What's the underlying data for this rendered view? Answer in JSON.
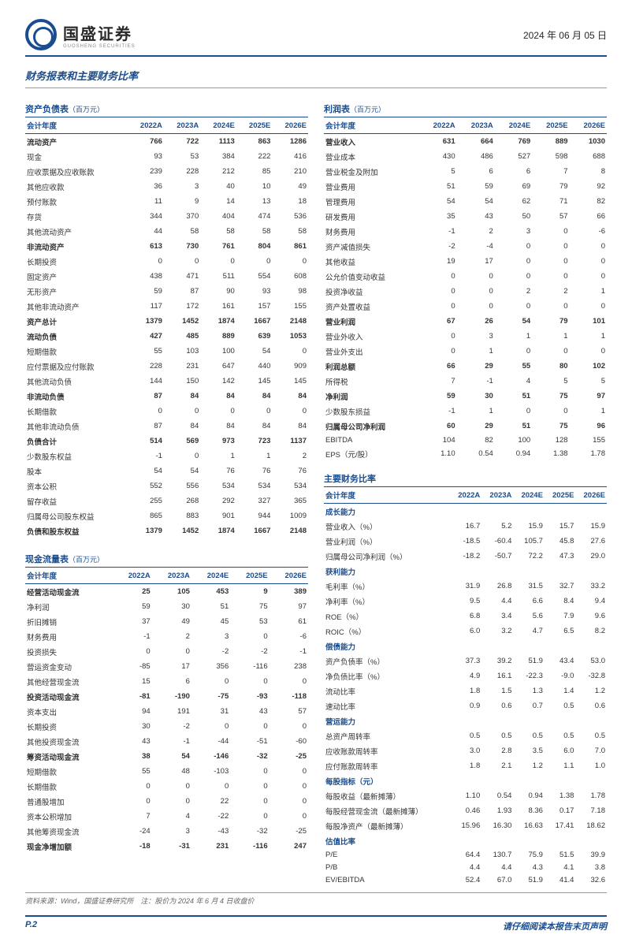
{
  "date_text": "2024 年 06 月 05 日",
  "logo_cn": "国盛证券",
  "logo_en": "GUOSHENG SECURITIES",
  "section_title": "财务报表和主要财务比率",
  "years": [
    "2022A",
    "2023A",
    "2024E",
    "2025E",
    "2026E"
  ],
  "yh": "会计年度",
  "balance": {
    "title": "资产负债表",
    "unit": "（百万元）",
    "rows": [
      {
        "l": "流动资产",
        "v": [
          "766",
          "722",
          "1113",
          "863",
          "1286"
        ],
        "b": 1
      },
      {
        "l": "现金",
        "v": [
          "93",
          "53",
          "384",
          "222",
          "416"
        ]
      },
      {
        "l": "应收票据及应收账款",
        "v": [
          "239",
          "228",
          "212",
          "85",
          "210"
        ]
      },
      {
        "l": "其他应收款",
        "v": [
          "36",
          "3",
          "40",
          "10",
          "49"
        ]
      },
      {
        "l": "预付账款",
        "v": [
          "11",
          "9",
          "14",
          "13",
          "18"
        ]
      },
      {
        "l": "存货",
        "v": [
          "344",
          "370",
          "404",
          "474",
          "536"
        ]
      },
      {
        "l": "其他流动资产",
        "v": [
          "44",
          "58",
          "58",
          "58",
          "58"
        ]
      },
      {
        "l": "非流动资产",
        "v": [
          "613",
          "730",
          "761",
          "804",
          "861"
        ],
        "b": 1
      },
      {
        "l": "长期投资",
        "v": [
          "0",
          "0",
          "0",
          "0",
          "0"
        ]
      },
      {
        "l": "固定资产",
        "v": [
          "438",
          "471",
          "511",
          "554",
          "608"
        ]
      },
      {
        "l": "无形资产",
        "v": [
          "59",
          "87",
          "90",
          "93",
          "98"
        ]
      },
      {
        "l": "其他非流动资产",
        "v": [
          "117",
          "172",
          "161",
          "157",
          "155"
        ]
      },
      {
        "l": "资产总计",
        "v": [
          "1379",
          "1452",
          "1874",
          "1667",
          "2148"
        ],
        "b": 1
      },
      {
        "l": "流动负债",
        "v": [
          "427",
          "485",
          "889",
          "639",
          "1053"
        ],
        "b": 1
      },
      {
        "l": "短期借款",
        "v": [
          "55",
          "103",
          "100",
          "54",
          "0"
        ]
      },
      {
        "l": "应付票据及应付账款",
        "v": [
          "228",
          "231",
          "647",
          "440",
          "909"
        ]
      },
      {
        "l": "其他流动负债",
        "v": [
          "144",
          "150",
          "142",
          "145",
          "145"
        ]
      },
      {
        "l": "非流动负债",
        "v": [
          "87",
          "84",
          "84",
          "84",
          "84"
        ],
        "b": 1
      },
      {
        "l": "长期借款",
        "v": [
          "0",
          "0",
          "0",
          "0",
          "0"
        ]
      },
      {
        "l": "其他非流动负债",
        "v": [
          "87",
          "84",
          "84",
          "84",
          "84"
        ]
      },
      {
        "l": "负债合计",
        "v": [
          "514",
          "569",
          "973",
          "723",
          "1137"
        ],
        "b": 1
      },
      {
        "l": "少数股东权益",
        "v": [
          "-1",
          "0",
          "1",
          "1",
          "2"
        ]
      },
      {
        "l": "股本",
        "v": [
          "54",
          "54",
          "76",
          "76",
          "76"
        ]
      },
      {
        "l": "资本公积",
        "v": [
          "552",
          "556",
          "534",
          "534",
          "534"
        ]
      },
      {
        "l": "留存收益",
        "v": [
          "255",
          "268",
          "292",
          "327",
          "365"
        ]
      },
      {
        "l": "归属母公司股东权益",
        "v": [
          "865",
          "883",
          "901",
          "944",
          "1009"
        ]
      },
      {
        "l": "负债和股东权益",
        "v": [
          "1379",
          "1452",
          "1874",
          "1667",
          "2148"
        ],
        "b": 1
      }
    ]
  },
  "cashflow": {
    "title": "现金流量表",
    "unit": "（百万元）",
    "rows": [
      {
        "l": "经营活动现金流",
        "v": [
          "25",
          "105",
          "453",
          "9",
          "389"
        ],
        "b": 1
      },
      {
        "l": "净利润",
        "v": [
          "59",
          "30",
          "51",
          "75",
          "97"
        ]
      },
      {
        "l": "折旧摊销",
        "v": [
          "37",
          "49",
          "45",
          "53",
          "61"
        ]
      },
      {
        "l": "财务费用",
        "v": [
          "-1",
          "2",
          "3",
          "0",
          "-6"
        ]
      },
      {
        "l": "投资损失",
        "v": [
          "0",
          "0",
          "-2",
          "-2",
          "-1"
        ]
      },
      {
        "l": "营运资金变动",
        "v": [
          "-85",
          "17",
          "356",
          "-116",
          "238"
        ]
      },
      {
        "l": "其他经营现金流",
        "v": [
          "15",
          "6",
          "0",
          "0",
          "0"
        ]
      },
      {
        "l": "投资活动现金流",
        "v": [
          "-81",
          "-190",
          "-75",
          "-93",
          "-118"
        ],
        "b": 1
      },
      {
        "l": "资本支出",
        "v": [
          "94",
          "191",
          "31",
          "43",
          "57"
        ]
      },
      {
        "l": "长期投资",
        "v": [
          "30",
          "-2",
          "0",
          "0",
          "0"
        ]
      },
      {
        "l": "其他投资现金流",
        "v": [
          "43",
          "-1",
          "-44",
          "-51",
          "-60"
        ]
      },
      {
        "l": "筹资活动现金流",
        "v": [
          "38",
          "54",
          "-146",
          "-32",
          "-25"
        ],
        "b": 1
      },
      {
        "l": "短期借款",
        "v": [
          "55",
          "48",
          "-103",
          "0",
          "0"
        ]
      },
      {
        "l": "长期借款",
        "v": [
          "0",
          "0",
          "0",
          "0",
          "0"
        ]
      },
      {
        "l": "普通股增加",
        "v": [
          "0",
          "0",
          "22",
          "0",
          "0"
        ]
      },
      {
        "l": "资本公积增加",
        "v": [
          "7",
          "4",
          "-22",
          "0",
          "0"
        ]
      },
      {
        "l": "其他筹资现金流",
        "v": [
          "-24",
          "3",
          "-43",
          "-32",
          "-25"
        ]
      },
      {
        "l": "现金净增加额",
        "v": [
          "-18",
          "-31",
          "231",
          "-116",
          "247"
        ],
        "b": 1
      }
    ]
  },
  "income": {
    "title": "利润表",
    "unit": "（百万元）",
    "rows": [
      {
        "l": "营业收入",
        "v": [
          "631",
          "664",
          "769",
          "889",
          "1030"
        ],
        "b": 1
      },
      {
        "l": "营业成本",
        "v": [
          "430",
          "486",
          "527",
          "598",
          "688"
        ]
      },
      {
        "l": "营业税金及附加",
        "v": [
          "5",
          "6",
          "6",
          "7",
          "8"
        ]
      },
      {
        "l": "营业费用",
        "v": [
          "51",
          "59",
          "69",
          "79",
          "92"
        ]
      },
      {
        "l": "管理费用",
        "v": [
          "54",
          "54",
          "62",
          "71",
          "82"
        ]
      },
      {
        "l": "研发费用",
        "v": [
          "35",
          "43",
          "50",
          "57",
          "66"
        ]
      },
      {
        "l": "财务费用",
        "v": [
          "-1",
          "2",
          "3",
          "0",
          "-6"
        ]
      },
      {
        "l": "资产减值损失",
        "v": [
          "-2",
          "-4",
          "0",
          "0",
          "0"
        ]
      },
      {
        "l": "其他收益",
        "v": [
          "19",
          "17",
          "0",
          "0",
          "0"
        ]
      },
      {
        "l": "公允价值变动收益",
        "v": [
          "0",
          "0",
          "0",
          "0",
          "0"
        ]
      },
      {
        "l": "投资净收益",
        "v": [
          "0",
          "0",
          "2",
          "2",
          "1"
        ]
      },
      {
        "l": "资产处置收益",
        "v": [
          "0",
          "0",
          "0",
          "0",
          "0"
        ]
      },
      {
        "l": "营业利润",
        "v": [
          "67",
          "26",
          "54",
          "79",
          "101"
        ],
        "b": 1
      },
      {
        "l": "营业外收入",
        "v": [
          "0",
          "3",
          "1",
          "1",
          "1"
        ]
      },
      {
        "l": "营业外支出",
        "v": [
          "0",
          "1",
          "0",
          "0",
          "0"
        ]
      },
      {
        "l": "利润总额",
        "v": [
          "66",
          "29",
          "55",
          "80",
          "102"
        ],
        "b": 1
      },
      {
        "l": "所得税",
        "v": [
          "7",
          "-1",
          "4",
          "5",
          "5"
        ]
      },
      {
        "l": "净利润",
        "v": [
          "59",
          "30",
          "51",
          "75",
          "97"
        ],
        "b": 1
      },
      {
        "l": "少数股东损益",
        "v": [
          "-1",
          "1",
          "0",
          "0",
          "1"
        ]
      },
      {
        "l": "归属母公司净利润",
        "v": [
          "60",
          "29",
          "51",
          "75",
          "96"
        ],
        "b": 1
      },
      {
        "l": "EBITDA",
        "v": [
          "104",
          "82",
          "100",
          "128",
          "155"
        ]
      },
      {
        "l": "EPS（元/股）",
        "v": [
          "1.10",
          "0.54",
          "0.94",
          "1.38",
          "1.78"
        ]
      }
    ]
  },
  "ratios": {
    "title": "主要财务比率",
    "groups": [
      {
        "h": "成长能力",
        "rows": [
          {
            "l": "营业收入（%）",
            "v": [
              "16.7",
              "5.2",
              "15.9",
              "15.7",
              "15.9"
            ]
          },
          {
            "l": "营业利润（%）",
            "v": [
              "-18.5",
              "-60.4",
              "105.7",
              "45.8",
              "27.6"
            ]
          },
          {
            "l": "归属母公司净利润（%）",
            "v": [
              "-18.2",
              "-50.7",
              "72.2",
              "47.3",
              "29.0"
            ]
          }
        ]
      },
      {
        "h": "获利能力",
        "rows": [
          {
            "l": "毛利率（%）",
            "v": [
              "31.9",
              "26.8",
              "31.5",
              "32.7",
              "33.2"
            ]
          },
          {
            "l": "净利率（%）",
            "v": [
              "9.5",
              "4.4",
              "6.6",
              "8.4",
              "9.4"
            ]
          },
          {
            "l": "ROE（%）",
            "v": [
              "6.8",
              "3.4",
              "5.6",
              "7.9",
              "9.6"
            ]
          },
          {
            "l": "ROIC（%）",
            "v": [
              "6.0",
              "3.2",
              "4.7",
              "6.5",
              "8.2"
            ]
          }
        ]
      },
      {
        "h": "偿债能力",
        "rows": [
          {
            "l": "资产负债率（%）",
            "v": [
              "37.3",
              "39.2",
              "51.9",
              "43.4",
              "53.0"
            ]
          },
          {
            "l": "净负债比率（%）",
            "v": [
              "4.9",
              "16.1",
              "-22.3",
              "-9.0",
              "-32.8"
            ]
          },
          {
            "l": "流动比率",
            "v": [
              "1.8",
              "1.5",
              "1.3",
              "1.4",
              "1.2"
            ]
          },
          {
            "l": "速动比率",
            "v": [
              "0.9",
              "0.6",
              "0.7",
              "0.5",
              "0.6"
            ]
          }
        ]
      },
      {
        "h": "营运能力",
        "rows": [
          {
            "l": "总资产周转率",
            "v": [
              "0.5",
              "0.5",
              "0.5",
              "0.5",
              "0.5"
            ]
          },
          {
            "l": "应收账款周转率",
            "v": [
              "3.0",
              "2.8",
              "3.5",
              "6.0",
              "7.0"
            ]
          },
          {
            "l": "应付账款周转率",
            "v": [
              "1.8",
              "2.1",
              "1.2",
              "1.1",
              "1.0"
            ]
          }
        ]
      },
      {
        "h": "每股指标（元）",
        "rows": [
          {
            "l": "每股收益（最新摊薄）",
            "v": [
              "1.10",
              "0.54",
              "0.94",
              "1.38",
              "1.78"
            ]
          },
          {
            "l": "每股经营现金流（最新摊薄）",
            "v": [
              "0.46",
              "1.93",
              "8.36",
              "0.17",
              "7.18"
            ]
          },
          {
            "l": "每股净资产（最新摊薄）",
            "v": [
              "15.96",
              "16.30",
              "16.63",
              "17.41",
              "18.62"
            ]
          }
        ]
      },
      {
        "h": "估值比率",
        "rows": [
          {
            "l": "P/E",
            "v": [
              "64.4",
              "130.7",
              "75.9",
              "51.5",
              "39.9"
            ]
          },
          {
            "l": "P/B",
            "v": [
              "4.4",
              "4.4",
              "4.3",
              "4.1",
              "3.8"
            ]
          },
          {
            "l": "EV/EBITDA",
            "v": [
              "52.4",
              "67.0",
              "51.9",
              "41.4",
              "32.6"
            ]
          }
        ]
      }
    ]
  },
  "source": "资料来源：Wind，国盛证券研究所　注：股价为 2024 年 6 月 4 日收盘价",
  "page_num": "P.2",
  "disclaimer": "请仔细阅读本报告末页声明"
}
